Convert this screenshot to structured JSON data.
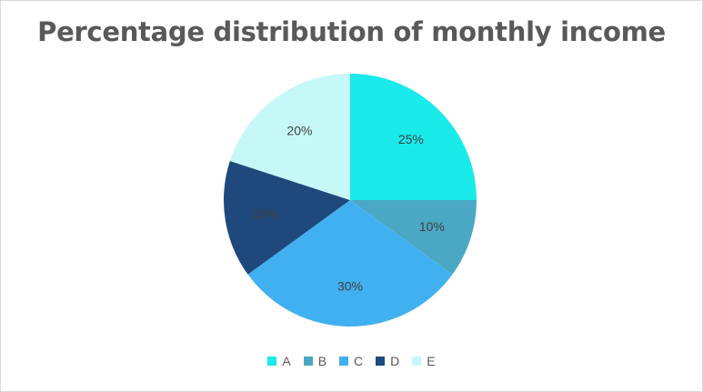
{
  "chart_data": {
    "type": "pie",
    "title": "Percentage distribution of monthly income",
    "categories": [
      "A",
      "B",
      "C",
      "D",
      "E"
    ],
    "values": [
      25,
      10,
      30,
      15,
      20
    ],
    "labels": [
      "25%",
      "10%",
      "30%",
      "15%",
      "20%"
    ],
    "colors": [
      "#1aeaea",
      "#4aa8c4",
      "#41b0f0",
      "#1f497d",
      "#c7f8f8"
    ],
    "legend_position": "bottom"
  }
}
